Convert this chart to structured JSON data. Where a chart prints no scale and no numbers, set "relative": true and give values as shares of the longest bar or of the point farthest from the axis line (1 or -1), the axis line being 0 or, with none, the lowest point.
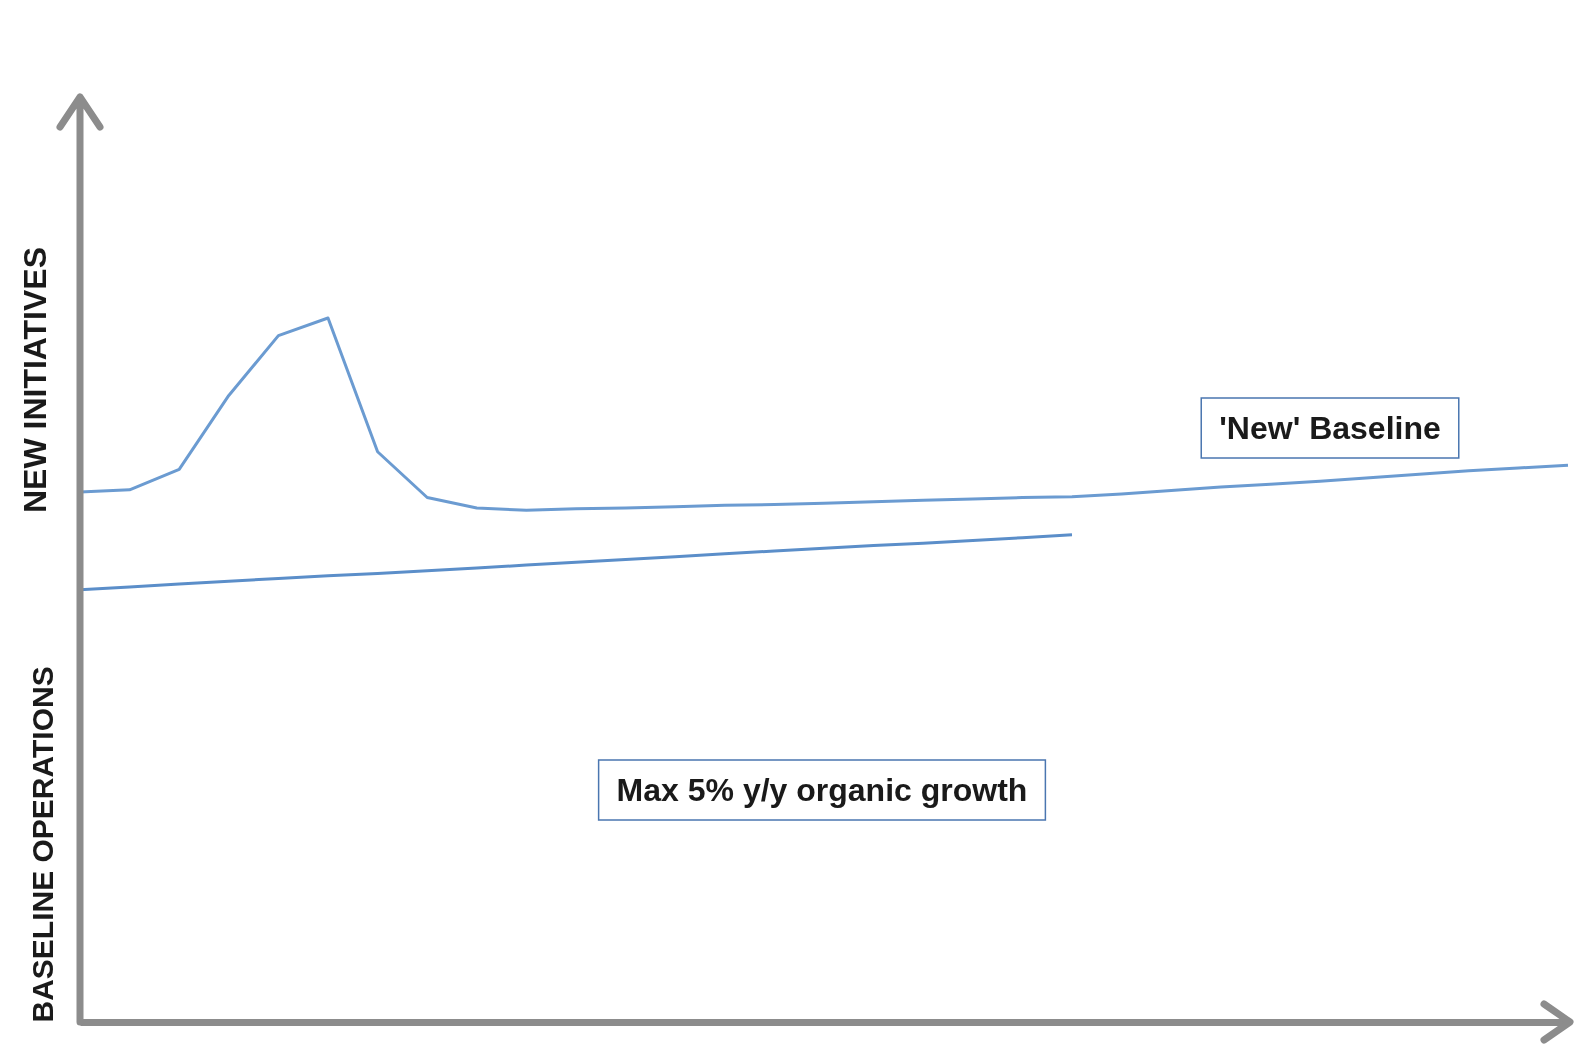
{
  "chart_data": {
    "type": "line",
    "relative": true,
    "ylabel": "BASELINE OPERATIONS",
    "line_style": "solid",
    "categories": [
      null,
      null,
      null,
      null,
      null,
      null,
      null,
      null,
      null,
      null,
      null,
      null,
      null,
      null,
      null,
      null,
      null,
      null,
      null,
      null,
      null,
      null,
      null,
      null,
      null,
      null,
      null,
      null,
      null,
      null,
      null
    ],
    "series": [
      {
        "color": "#6b9bd1",
        "values": [
          0.753,
          0.756,
          0.785,
          0.89,
          0.975,
          1.0,
          0.81,
          0.745,
          0.73,
          0.727,
          0.729,
          0.73,
          0.732,
          0.734,
          0.735,
          0.737,
          0.739,
          0.741,
          0.743,
          0.745,
          0.746,
          0.75,
          0.755,
          0.76,
          0.764,
          0.768,
          0.773,
          0.778,
          0.783,
          0.787,
          0.791
        ]
      },
      {
        "color": "#5b8ec9",
        "values": [
          0.614,
          0.618,
          0.622,
          0.626,
          0.63,
          0.634,
          0.637,
          0.641,
          0.645,
          0.649,
          0.653,
          0.657,
          0.661,
          0.665,
          0.669,
          0.673,
          0.677,
          0.68,
          0.684,
          0.688,
          0.692,
          null,
          null,
          null,
          null,
          null,
          null,
          null,
          null,
          null,
          null
        ]
      }
    ],
    "annotations": [
      "NEW INITIATIVES",
      "'New' Baseline",
      "Max 5% y/y organic growth"
    ]
  }
}
